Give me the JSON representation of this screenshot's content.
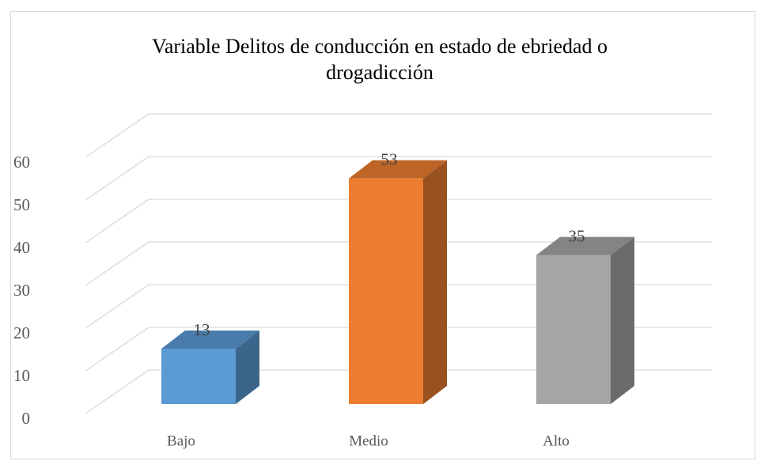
{
  "chart_data": {
    "type": "bar3d",
    "title": "Variable Delitos de conducción en estado de ebriedad o drogadicción",
    "categories": [
      "Bajo",
      "Medio",
      "Alto"
    ],
    "values": [
      13,
      53,
      35
    ],
    "colors": [
      "#5b9bd5",
      "#ed7d31",
      "#a5a5a5"
    ],
    "ylim": [
      0,
      60
    ],
    "yticks": [
      0,
      10,
      20,
      30,
      40,
      50,
      60
    ],
    "grid": true
  }
}
